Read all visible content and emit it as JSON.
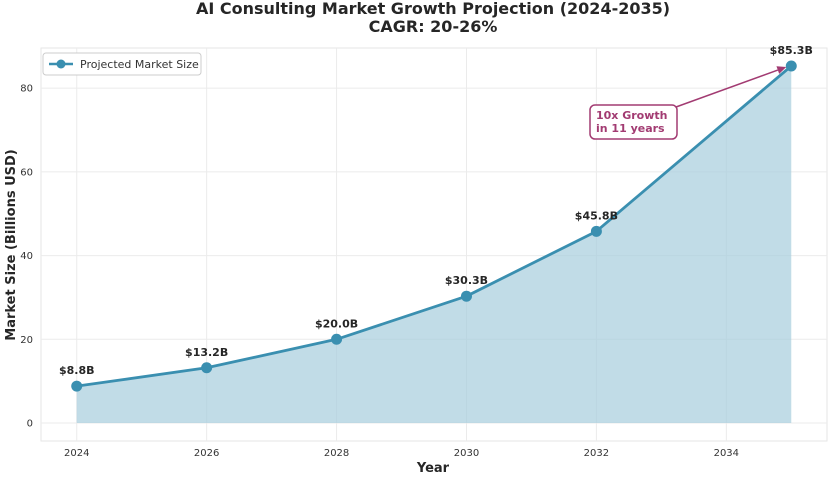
{
  "chart_data": {
    "type": "area",
    "title": "AI Consulting Market Growth Projection (2024-2035)",
    "subtitle": "CAGR: 20-26%",
    "xlabel": "Year",
    "ylabel": "Market Size (Billions USD)",
    "x": [
      2024,
      2026,
      2028,
      2030,
      2032,
      2035
    ],
    "series": [
      {
        "name": "Projected Market Size",
        "values": [
          8.8,
          13.2,
          20.0,
          30.3,
          45.8,
          85.3
        ],
        "labels": [
          "$8.8B",
          "$13.2B",
          "$20.0B",
          "$30.3B",
          "$45.8B",
          "$85.3B"
        ]
      }
    ],
    "xlim": [
      2023.45,
      2035.55
    ],
    "ylim": [
      -4.3,
      89.6
    ],
    "xticks": [
      2024,
      2026,
      2028,
      2030,
      2032,
      2034
    ],
    "yticks": [
      0,
      20,
      40,
      60,
      80
    ],
    "grid": true,
    "legend_position": "top-left",
    "annotation": {
      "lines": [
        "10x Growth",
        "in 11 years"
      ],
      "points_to": [
        2035,
        85.3
      ]
    },
    "colors": {
      "line": "#3a8fb0",
      "fill": "#a6cddd",
      "annotation": "#a23b72",
      "grid": "#ebebeb",
      "text": "#262626"
    }
  }
}
